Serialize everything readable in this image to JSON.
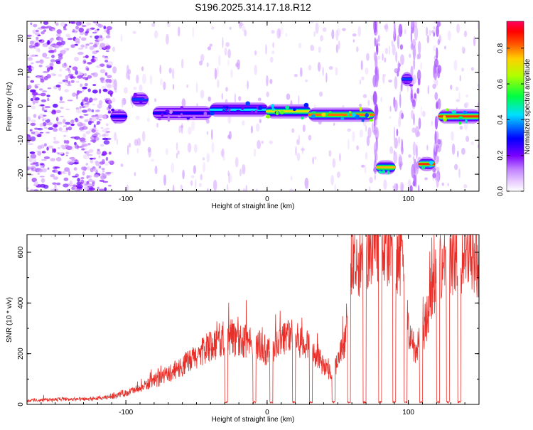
{
  "title": "S196.2025.314.17.18.R12",
  "chart_data": [
    {
      "type": "heatmap",
      "name": "spectrogram",
      "xlabel": "Height of straight line (km)",
      "ylabel": "Frequency (Hz)",
      "xlim": [
        -170,
        150
      ],
      "ylim": [
        -25,
        25
      ],
      "xticks": [
        -100,
        0,
        100
      ],
      "xtick_labels": [
        "-100",
        "0",
        "100"
      ],
      "yticks": [
        -20,
        -10,
        0,
        10,
        20
      ],
      "ytick_labels": [
        "-20",
        "-10",
        "0",
        "10",
        "20"
      ],
      "colorbar": {
        "label": "Normalized spectral amplitude",
        "range": [
          0,
          0.95
        ],
        "ticks": [
          0.0,
          0.2,
          0.4,
          0.6,
          0.8
        ],
        "tick_labels": [
          "0.0",
          "0.2",
          "0.4",
          "0.6",
          "0.8"
        ]
      },
      "ridge_segments": [
        {
          "x0": -110,
          "x1": -100,
          "freq": -3,
          "amp": 0.3
        },
        {
          "x0": -95,
          "x1": -85,
          "freq": 2,
          "amp": 0.35
        },
        {
          "x0": -80,
          "x1": -40,
          "freq": -2,
          "amp": 0.3
        },
        {
          "x0": -40,
          "x1": 0,
          "freq": -1,
          "amp": 0.45
        },
        {
          "x0": 0,
          "x1": 30,
          "freq": -1.5,
          "amp": 0.75
        },
        {
          "x0": 30,
          "x1": 75,
          "freq": -2.5,
          "amp": 0.85
        },
        {
          "x0": 78,
          "x1": 90,
          "freq": -18,
          "amp": 0.8
        },
        {
          "x0": 96,
          "x1": 102,
          "freq": 8,
          "amp": 0.35
        },
        {
          "x0": 108,
          "x1": 118,
          "freq": -17,
          "amp": 0.9
        },
        {
          "x0": 122,
          "x1": 150,
          "freq": -3,
          "amp": 0.9
        }
      ]
    },
    {
      "type": "line",
      "name": "snr",
      "xlabel": "Height of straight line (km)",
      "ylabel": "SNR (10 * v/v)",
      "xlim": [
        -170,
        150
      ],
      "ylim": [
        0,
        670
      ],
      "xticks": [
        -100,
        0,
        100
      ],
      "xtick_labels": [
        "-100",
        "0",
        "100"
      ],
      "yticks": [
        0,
        200,
        400,
        600
      ],
      "ytick_labels": [
        "0",
        "200",
        "400",
        "600"
      ],
      "color": "#e8302a",
      "series": [
        {
          "name": "SNR",
          "x": [
            -170,
            -150,
            -130,
            -115,
            -105,
            -100,
            -95,
            -90,
            -85,
            -80,
            -75,
            -70,
            -65,
            -60,
            -55,
            -50,
            -45,
            -40,
            -35,
            -30,
            -25,
            -20,
            -15,
            -10,
            -5,
            0,
            5,
            10,
            15,
            20,
            25,
            30,
            35,
            40,
            45,
            50,
            55,
            60,
            65,
            70,
            75,
            80,
            85,
            90,
            95,
            100,
            105,
            110,
            115,
            120,
            125,
            130,
            135,
            140,
            145,
            150
          ],
          "y": [
            15,
            20,
            20,
            25,
            40,
            45,
            55,
            60,
            80,
            90,
            110,
            120,
            140,
            150,
            170,
            190,
            210,
            230,
            250,
            260,
            270,
            260,
            250,
            240,
            230,
            210,
            230,
            260,
            280,
            260,
            240,
            230,
            200,
            150,
            130,
            170,
            240,
            540,
            520,
            600,
            620,
            620,
            640,
            610,
            590,
            290,
            210,
            270,
            400,
            520,
            570,
            580,
            570,
            590,
            580,
            580
          ]
        }
      ]
    }
  ]
}
